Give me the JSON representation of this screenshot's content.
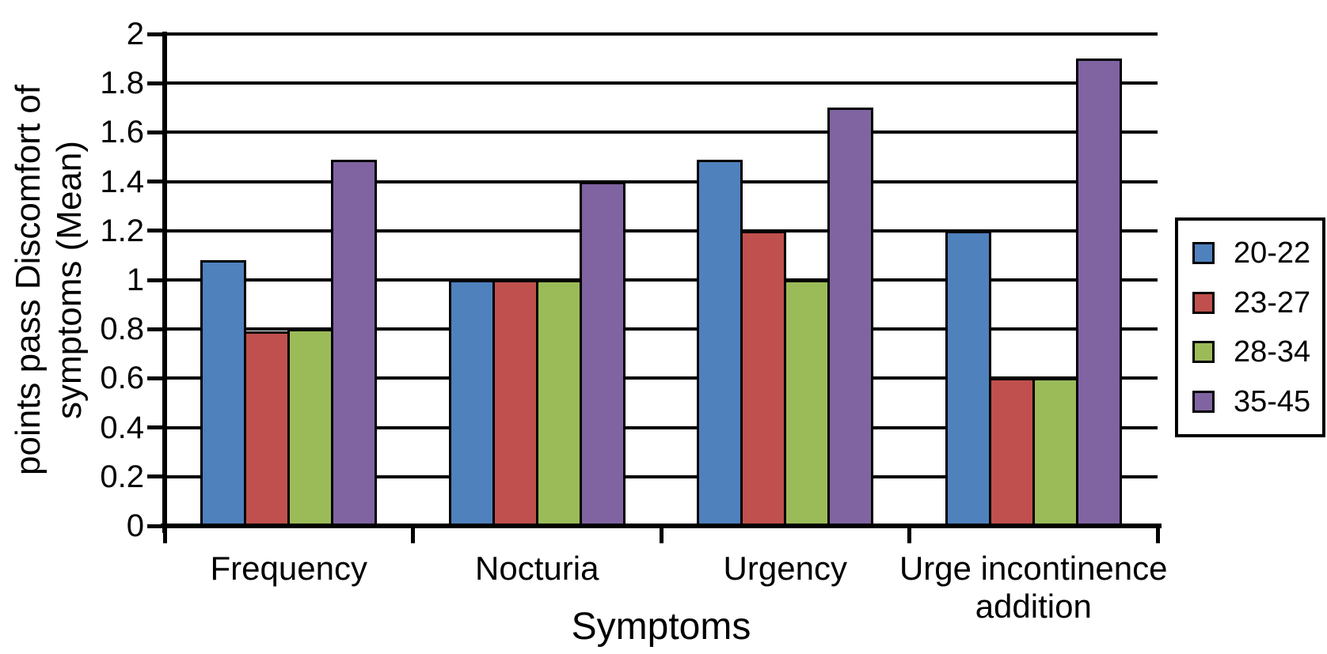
{
  "figure": {
    "background": "#ffffff",
    "axis_color": "#000000",
    "gridline_color": "#000000"
  },
  "chart_data": {
    "type": "bar",
    "title": "",
    "xlabel": "Symptoms",
    "ylabel": "points pass Discomfort of symptoms (Mean)",
    "ylabel_lines": [
      "points pass Discomfort of",
      "symptoms (Mean)"
    ],
    "categories": [
      "Frequency",
      "Nocturia",
      "Urgency",
      "Urge incontinence addition"
    ],
    "series": [
      {
        "name": "20-22",
        "color": "#4f81bd",
        "values": [
          1.08,
          1.0,
          1.49,
          1.2
        ]
      },
      {
        "name": "23-27",
        "color": "#c0504d",
        "values": [
          0.79,
          1.0,
          1.2,
          0.6
        ]
      },
      {
        "name": "28-34",
        "color": "#9bbb59",
        "values": [
          0.8,
          1.0,
          1.0,
          0.6
        ]
      },
      {
        "name": "35-45",
        "color": "#8064a2",
        "values": [
          1.49,
          1.4,
          1.7,
          1.9
        ]
      }
    ],
    "ylim": [
      0,
      2
    ],
    "ytick_step": 0.2,
    "ytick_labels": [
      "0",
      "0.2",
      "0.4",
      "0.6",
      "0.8",
      "1",
      "1.2",
      "1.4",
      "1.6",
      "1.8",
      "2"
    ],
    "grid": true,
    "legend_position": "right"
  }
}
